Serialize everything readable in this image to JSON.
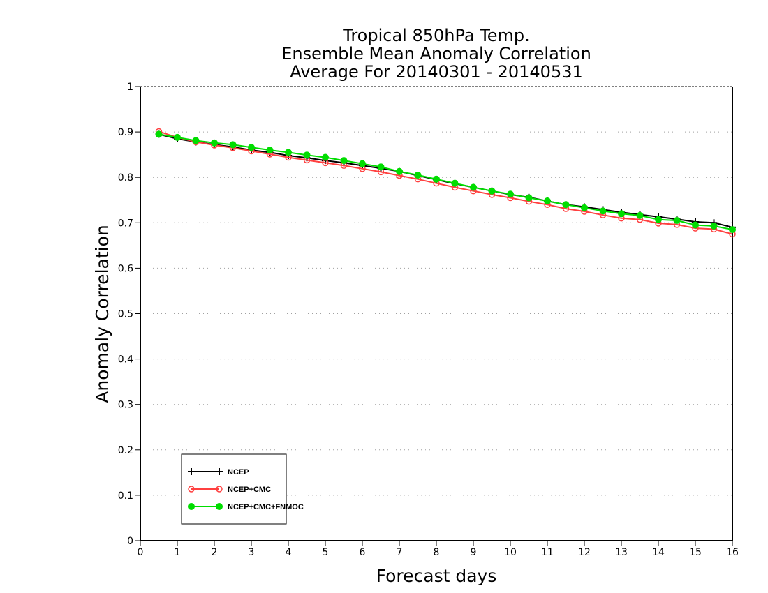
{
  "chart_data": {
    "type": "line",
    "title_lines": [
      "Tropical 850hPa Temp.",
      "Ensemble Mean Anomaly Correlation",
      "Average For 20140301 - 20140531"
    ],
    "xlabel": "Forecast days",
    "ylabel": "Anomaly Correlation",
    "xlim": [
      0,
      16
    ],
    "ylim": [
      0,
      1
    ],
    "x_ticks": [
      0,
      1,
      2,
      3,
      4,
      5,
      6,
      7,
      8,
      9,
      10,
      11,
      12,
      13,
      14,
      15,
      16
    ],
    "x_tick_labels": [
      "0",
      "1",
      "2",
      "3",
      "4",
      "5",
      "6",
      "7",
      "8",
      "9",
      "10",
      "11",
      "12",
      "13",
      "14",
      "15",
      "16"
    ],
    "y_ticks": [
      0,
      0.1,
      0.2,
      0.3,
      0.4,
      0.5,
      0.6,
      0.7,
      0.8,
      0.9,
      1
    ],
    "y_tick_labels": [
      "0",
      "0.1",
      "0.2",
      "0.3",
      "0.4",
      "0.5",
      "0.6",
      "0.7",
      "0.8",
      "0.9",
      "1"
    ],
    "grid": "horizontal dotted",
    "legend_position": "bottom-left",
    "x": [
      0.5,
      1,
      1.5,
      2,
      2.5,
      3,
      3.5,
      4,
      4.5,
      5,
      5.5,
      6,
      6.5,
      7,
      7.5,
      8,
      8.5,
      9,
      9.5,
      10,
      10.5,
      11,
      11.5,
      12,
      12.5,
      13,
      13.5,
      14,
      14.5,
      15,
      15.5,
      16
    ],
    "series": [
      {
        "name": "NCEP",
        "color": "#000000",
        "marker": "plus",
        "values": [
          0.895,
          0.885,
          0.878,
          0.872,
          0.867,
          0.86,
          0.855,
          0.848,
          0.843,
          0.837,
          0.832,
          0.826,
          0.82,
          0.813,
          0.804,
          0.795,
          0.786,
          0.778,
          0.77,
          0.762,
          0.756,
          0.748,
          0.74,
          0.735,
          0.729,
          0.723,
          0.718,
          0.713,
          0.708,
          0.702,
          0.7,
          0.69
        ]
      },
      {
        "name": "NCEP+CMC",
        "color": "#ff4040",
        "marker": "open-circle",
        "values": [
          0.901,
          0.888,
          0.878,
          0.871,
          0.865,
          0.858,
          0.851,
          0.844,
          0.838,
          0.832,
          0.826,
          0.819,
          0.812,
          0.804,
          0.796,
          0.787,
          0.778,
          0.77,
          0.762,
          0.755,
          0.747,
          0.74,
          0.731,
          0.725,
          0.717,
          0.71,
          0.707,
          0.699,
          0.696,
          0.688,
          0.686,
          0.675
        ]
      },
      {
        "name": "NCEP+CMC+FNMOC",
        "color": "#00dd00",
        "marker": "filled-circle",
        "values": [
          0.895,
          0.888,
          0.881,
          0.876,
          0.872,
          0.866,
          0.86,
          0.855,
          0.849,
          0.844,
          0.837,
          0.83,
          0.823,
          0.813,
          0.805,
          0.796,
          0.787,
          0.778,
          0.77,
          0.763,
          0.755,
          0.748,
          0.74,
          0.733,
          0.726,
          0.72,
          0.716,
          0.707,
          0.705,
          0.695,
          0.693,
          0.685
        ]
      }
    ]
  }
}
